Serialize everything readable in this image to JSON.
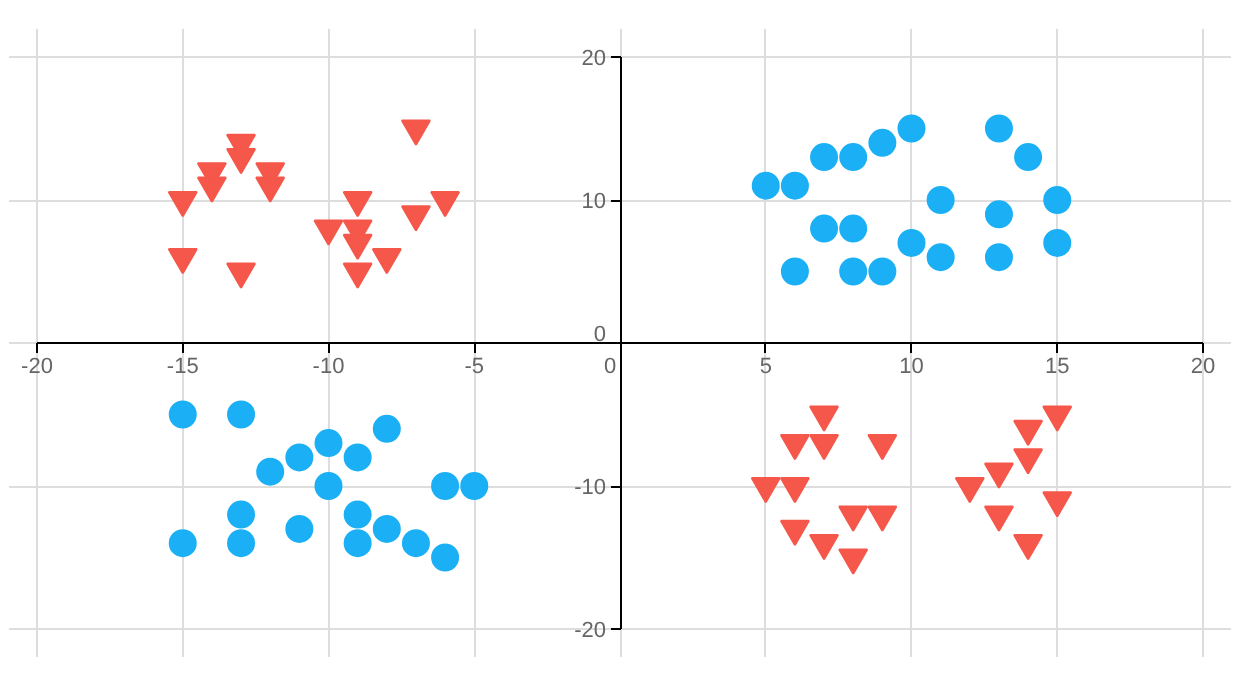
{
  "chart_data": {
    "type": "scatter",
    "xlim": [
      -20,
      20
    ],
    "ylim": [
      -20,
      20
    ],
    "xticks": [
      -20,
      -15,
      -10,
      -5,
      0,
      5,
      10,
      15,
      20
    ],
    "yticks": [
      -20,
      -10,
      0,
      10,
      20
    ],
    "grid": true,
    "series": [
      {
        "color": "#f5574a",
        "marker": "triangle",
        "x": [
          -15,
          -15,
          -13,
          -13,
          -14,
          -14,
          -12,
          -12,
          -13,
          -10,
          -9,
          -9,
          -9,
          -9,
          -8,
          -7,
          -7,
          -6,
          7,
          6,
          7,
          9,
          5,
          6,
          8,
          9,
          6,
          7,
          8,
          15,
          14,
          14,
          13,
          12,
          13,
          14,
          15
        ],
        "values": [
          10,
          6,
          14,
          13,
          12,
          11,
          12,
          11,
          5,
          8,
          10,
          8,
          7,
          5,
          6,
          15,
          9,
          10,
          -5,
          -7,
          -7,
          -7,
          -10,
          -10,
          -12,
          -12,
          -13,
          -14,
          -15,
          -5,
          -6,
          -8,
          -9,
          -10,
          -12,
          -14,
          -11
        ]
      },
      {
        "color": "#1bb0f5",
        "marker": "circle",
        "x": [
          5,
          6,
          7,
          8,
          9,
          10,
          13,
          14,
          11,
          15,
          13,
          7,
          8,
          10,
          11,
          13,
          15,
          6,
          8,
          9,
          -15,
          -13,
          -8,
          -10,
          -11,
          -9,
          -12,
          -10,
          -6,
          -5,
          -13,
          -9,
          -11,
          -8,
          -15,
          -13,
          -9,
          -7,
          -6
        ],
        "values": [
          11,
          11,
          13,
          13,
          14,
          15,
          15,
          13,
          10,
          10,
          9,
          8,
          8,
          7,
          6,
          6,
          7,
          5,
          5,
          5,
          -5,
          -5,
          -6,
          -7,
          -8,
          -8,
          -9,
          -10,
          -10,
          -10,
          -12,
          -12,
          -13,
          -13,
          -14,
          -14,
          -14,
          -14,
          -15
        ]
      }
    ]
  }
}
